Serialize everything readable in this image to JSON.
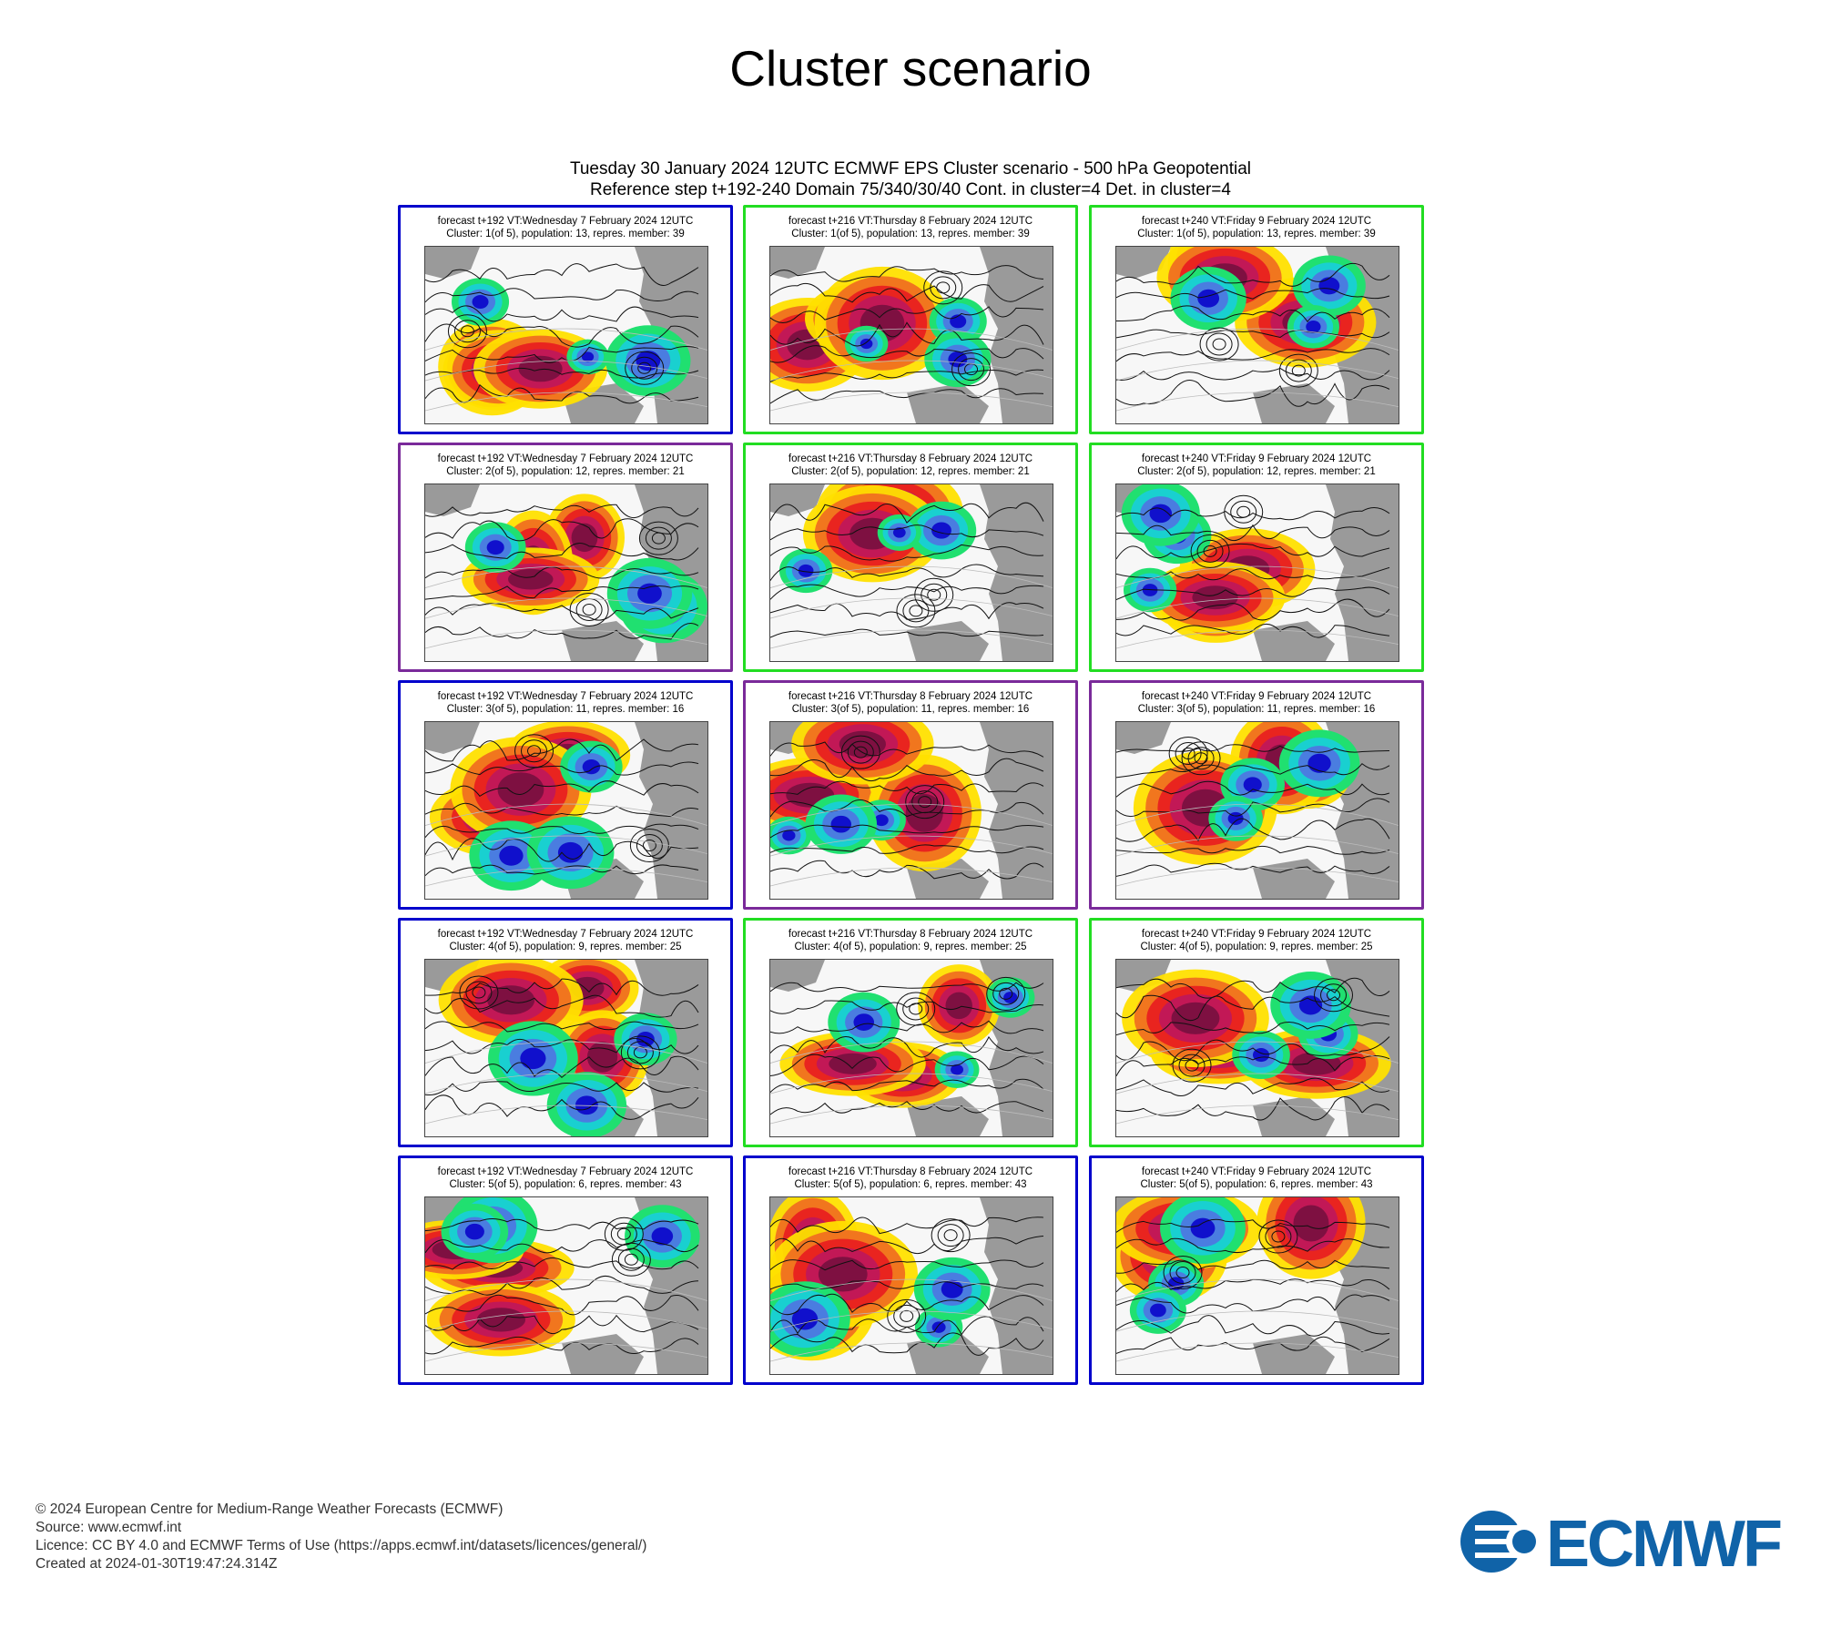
{
  "title": "Cluster scenario",
  "header": {
    "line1": "Tuesday 30 January 2024 12UTC ECMWF EPS Cluster scenario - 500 hPa Geopotential",
    "line2": "Reference step t+192-240 Domain 75/340/30/40 Cont. in cluster=4 Det. in cluster=4"
  },
  "colors": {
    "blue_frame": "#0000cc",
    "green_frame": "#22dd22",
    "purple_frame": "#7a2a9a",
    "logo": "#1063a8"
  },
  "panels": [
    {
      "line1": "forecast t+192 VT:Wednesday 7 February 2024 12UTC",
      "line2": "Cluster: 1(of 5), population: 13, repres. member: 39",
      "frame": "blue"
    },
    {
      "line1": "forecast t+216 VT:Thursday 8 February 2024 12UTC",
      "line2": "Cluster: 1(of 5), population: 13, repres. member: 39",
      "frame": "green"
    },
    {
      "line1": "forecast t+240 VT:Friday 9 February 2024 12UTC",
      "line2": "Cluster: 1(of 5), population: 13, repres. member: 39",
      "frame": "green"
    },
    {
      "line1": "forecast t+192 VT:Wednesday 7 February 2024 12UTC",
      "line2": "Cluster: 2(of 5), population: 12, repres. member: 21",
      "frame": "purple"
    },
    {
      "line1": "forecast t+216 VT:Thursday 8 February 2024 12UTC",
      "line2": "Cluster: 2(of 5), population: 12, repres. member: 21",
      "frame": "green"
    },
    {
      "line1": "forecast t+240 VT:Friday 9 February 2024 12UTC",
      "line2": "Cluster: 2(of 5), population: 12, repres. member: 21",
      "frame": "green"
    },
    {
      "line1": "forecast t+192 VT:Wednesday 7 February 2024 12UTC",
      "line2": "Cluster: 3(of 5), population: 11, repres. member: 16",
      "frame": "blue"
    },
    {
      "line1": "forecast t+216 VT:Thursday 8 February 2024 12UTC",
      "line2": "Cluster: 3(of 5), population: 11, repres. member: 16",
      "frame": "purple"
    },
    {
      "line1": "forecast t+240 VT:Friday 9 February 2024 12UTC",
      "line2": "Cluster: 3(of 5), population: 11, repres. member: 16",
      "frame": "purple"
    },
    {
      "line1": "forecast t+192 VT:Wednesday 7 February 2024 12UTC",
      "line2": "Cluster: 4(of 5), population: 9, repres. member: 25",
      "frame": "blue"
    },
    {
      "line1": "forecast t+216 VT:Thursday 8 February 2024 12UTC",
      "line2": "Cluster: 4(of 5), population: 9, repres. member: 25",
      "frame": "green"
    },
    {
      "line1": "forecast t+240 VT:Friday 9 February 2024 12UTC",
      "line2": "Cluster: 4(of 5), population: 9, repres. member: 25",
      "frame": "green"
    },
    {
      "line1": "forecast t+192 VT:Wednesday 7 February 2024 12UTC",
      "line2": "Cluster: 5(of 5), population: 6, repres. member: 43",
      "frame": "blue"
    },
    {
      "line1": "forecast t+216 VT:Thursday 8 February 2024 12UTC",
      "line2": "Cluster: 5(of 5), population: 6, repres. member: 43",
      "frame": "blue"
    },
    {
      "line1": "forecast t+240 VT:Friday 9 February 2024 12UTC",
      "line2": "Cluster: 5(of 5), population: 6, repres. member: 43",
      "frame": "blue"
    }
  ],
  "footer": {
    "copyright": "© 2024 European Centre for Medium-Range Weather Forecasts (ECMWF)",
    "source": "Source: www.ecmwf.int",
    "licence": "Licence: CC BY 4.0 and ECMWF Terms of Use (https://apps.ecmwf.int/datasets/licences/general/)",
    "created": "Created at 2024-01-30T19:47:24.314Z"
  },
  "logo": {
    "text": "ECMWF",
    "icon": "ecmwf-logo-icon"
  }
}
